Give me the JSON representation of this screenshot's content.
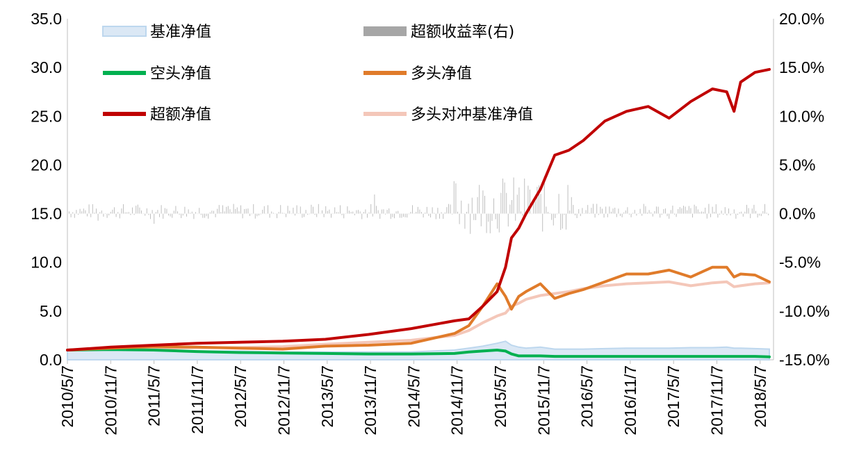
{
  "chart_data": {
    "type": "line",
    "title": "",
    "xlabel": "",
    "ylabel": "",
    "y2label": "",
    "ylim": [
      0,
      35
    ],
    "y2lim": [
      -0.15,
      0.2
    ],
    "y_ticks": [
      "0.0",
      "5.0",
      "10.0",
      "15.0",
      "20.0",
      "25.0",
      "30.0",
      "35.0"
    ],
    "y2_ticks": [
      "-15.0%",
      "-10.0%",
      "-5.0%",
      "0.0%",
      "5.0%",
      "10.0%",
      "15.0%",
      "20.0%"
    ],
    "x_ticks": [
      "2010/5/7",
      "2010/11/7",
      "2011/5/7",
      "2011/11/7",
      "2012/5/7",
      "2012/11/7",
      "2013/5/7",
      "2013/11/7",
      "2014/5/7",
      "2014/11/7",
      "2015/5/7",
      "2015/11/7",
      "2016/5/7",
      "2016/11/7",
      "2017/5/7",
      "2017/11/7",
      "2018/5/7"
    ],
    "x_dates": [
      "2010/5/7",
      "2010/11/7",
      "2011/5/7",
      "2011/11/7",
      "2012/5/7",
      "2012/11/7",
      "2013/5/7",
      "2013/11/7",
      "2014/5/7",
      "2014/11/7",
      "2015/1/7",
      "2015/3/7",
      "2015/5/7",
      "2015/6/12",
      "2015/7/7",
      "2015/8/7",
      "2015/9/7",
      "2015/11/7",
      "2016/1/7",
      "2016/3/7",
      "2016/5/7",
      "2016/8/7",
      "2016/11/7",
      "2017/2/7",
      "2017/5/7",
      "2017/8/7",
      "2017/11/7",
      "2018/1/7",
      "2018/2/7",
      "2018/3/7",
      "2018/5/7",
      "2018/7/7"
    ],
    "legend": {
      "placement": "top",
      "entries": [
        {
          "name": "基准净值",
          "color": "#bdd7ee",
          "style": "area"
        },
        {
          "name": "超额收益率(右)",
          "color": "#a6a6a6",
          "style": "bar"
        },
        {
          "name": "空头净值",
          "color": "#00b050",
          "style": "line"
        },
        {
          "name": "多头净值",
          "color": "#e07b2a",
          "style": "line"
        },
        {
          "name": "超额净值",
          "color": "#c00000",
          "style": "line"
        },
        {
          "name": "多头对冲基准净值",
          "color": "#f4c7b9",
          "style": "line"
        }
      ]
    },
    "series": [
      {
        "name": "基准净值",
        "axis": "left",
        "values": [
          1.0,
          1.0,
          1.0,
          0.9,
          0.9,
          0.8,
          0.8,
          0.8,
          0.8,
          1.0,
          1.2,
          1.4,
          1.7,
          1.9,
          1.5,
          1.3,
          1.2,
          1.3,
          1.1,
          1.1,
          1.1,
          1.15,
          1.2,
          1.2,
          1.2,
          1.25,
          1.25,
          1.3,
          1.2,
          1.2,
          1.15,
          1.1
        ]
      },
      {
        "name": "空头净值",
        "axis": "left",
        "values": [
          1.0,
          1.05,
          1.0,
          0.85,
          0.75,
          0.7,
          0.65,
          0.6,
          0.6,
          0.65,
          0.8,
          0.9,
          1.0,
          0.9,
          0.6,
          0.4,
          0.4,
          0.4,
          0.35,
          0.35,
          0.35,
          0.35,
          0.35,
          0.35,
          0.35,
          0.35,
          0.35,
          0.35,
          0.35,
          0.35,
          0.35,
          0.3
        ]
      },
      {
        "name": "多头净值",
        "axis": "left",
        "values": [
          1.0,
          1.2,
          1.35,
          1.3,
          1.2,
          1.1,
          1.4,
          1.5,
          1.7,
          2.7,
          3.5,
          5.5,
          7.8,
          6.5,
          5.2,
          6.5,
          7.0,
          7.8,
          6.3,
          6.8,
          7.2,
          8.0,
          8.8,
          8.8,
          9.2,
          8.5,
          9.5,
          9.5,
          8.5,
          8.8,
          8.7,
          8.0
        ]
      },
      {
        "name": "超额净值",
        "axis": "left",
        "values": [
          1.0,
          1.3,
          1.5,
          1.7,
          1.8,
          1.9,
          2.1,
          2.6,
          3.2,
          4.0,
          4.2,
          5.5,
          7.0,
          9.5,
          12.5,
          13.5,
          15.0,
          17.5,
          21.0,
          21.5,
          22.5,
          24.5,
          25.5,
          26.0,
          24.8,
          26.5,
          27.8,
          27.5,
          25.5,
          28.5,
          29.5,
          29.8
        ]
      },
      {
        "name": "多头对冲基准净值",
        "axis": "left",
        "values": [
          1.0,
          1.1,
          1.2,
          1.25,
          1.25,
          1.35,
          1.6,
          1.8,
          2.0,
          2.5,
          3.0,
          3.8,
          4.5,
          4.8,
          5.5,
          5.8,
          6.2,
          6.6,
          6.8,
          7.0,
          7.3,
          7.6,
          7.8,
          7.9,
          8.0,
          7.6,
          7.9,
          8.0,
          7.5,
          7.6,
          7.8,
          7.9
        ]
      }
    ]
  }
}
